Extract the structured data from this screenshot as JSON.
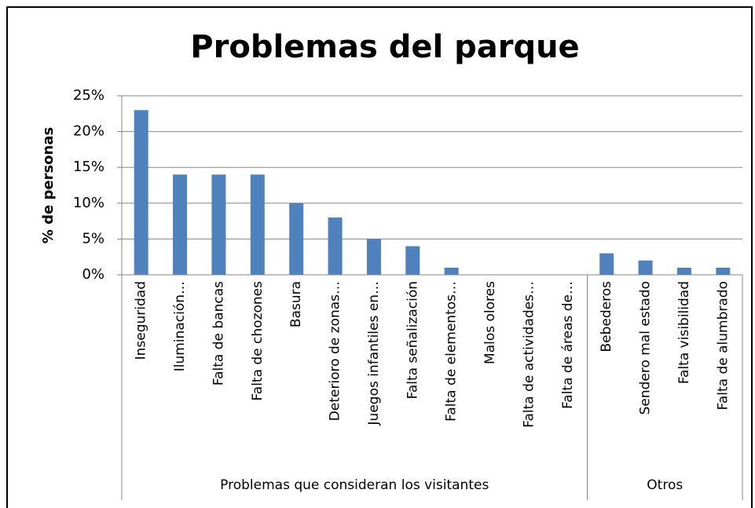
{
  "chart_data": {
    "type": "bar",
    "title": "Problemas del parque",
    "ylabel": "% de personas",
    "categories": [
      "Inseguridad",
      "Iluminación…",
      "Falta de bancas",
      "Falta de chozones",
      "Basura",
      "Deterioro de zonas…",
      "Juegos infantiles en…",
      "Falta señalización",
      "Falta de elementos…",
      "Malos olores",
      "Falta de actividades…",
      "Falta de áreas de…",
      "Bebederos",
      "Sendero mal estado",
      "Falta visibilidad",
      "Falta de alumbrado"
    ],
    "values": [
      23,
      14,
      14,
      14,
      10,
      8,
      5,
      4,
      1,
      0,
      0,
      0,
      3,
      2,
      1,
      1
    ],
    "groups": [
      {
        "label": "Problemas que consideran los visitantes",
        "size": 12
      },
      {
        "label": "Otros",
        "size": 4
      }
    ],
    "color": "#4f81bd",
    "ylim": [
      0,
      25
    ],
    "yticks": [
      {
        "value": 0,
        "label": "0%"
      },
      {
        "value": 5,
        "label": "5%"
      },
      {
        "value": 10,
        "label": "10%"
      },
      {
        "value": 15,
        "label": "15%"
      },
      {
        "value": 20,
        "label": "20%"
      },
      {
        "value": 25,
        "label": "25%"
      }
    ],
    "grid": true
  }
}
